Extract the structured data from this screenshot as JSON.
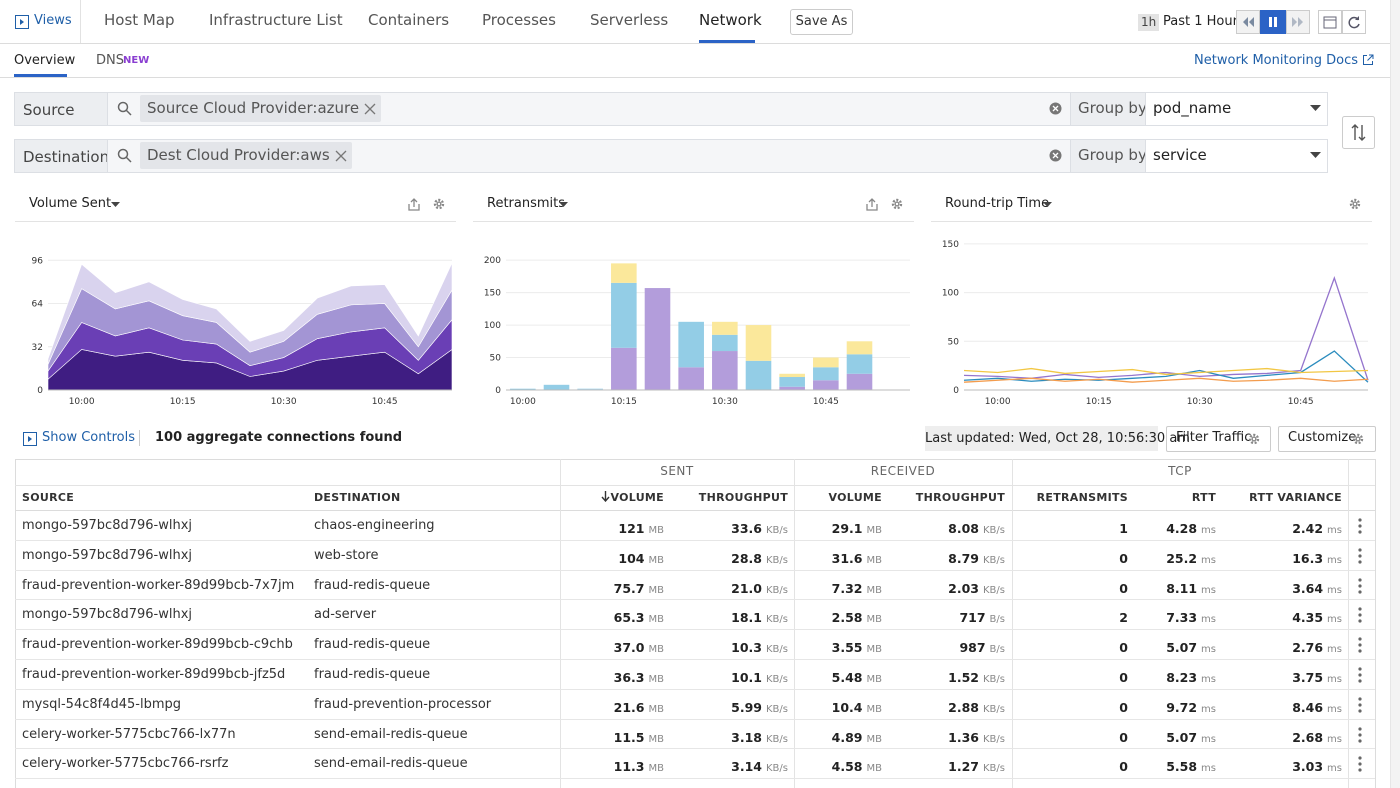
{
  "nav": {
    "views": "Views",
    "tabs": [
      "Host Map",
      "Infrastructure List",
      "Containers",
      "Processes",
      "Serverless",
      "Network"
    ],
    "save": "Save As",
    "time_short": "1h",
    "time": "Past 1 Hour"
  },
  "subnav": {
    "tabs": [
      "Overview",
      "DNS"
    ],
    "badge": "NEW",
    "docs": "Network Monitoring Docs"
  },
  "filters": [
    {
      "label": "Source",
      "tag": "Source Cloud Provider:azure",
      "group_label": "Group by",
      "group": "pod_name"
    },
    {
      "label": "Destination",
      "tag": "Dest Cloud Provider:aws",
      "group_label": "Group by",
      "group": "service"
    }
  ],
  "chart_data": [
    {
      "type": "area",
      "title": "Volume Sent",
      "categories": [
        null,
        "10:00",
        null,
        null,
        "10:15",
        null,
        null,
        "10:30",
        null,
        null,
        "10:45",
        null,
        null
      ],
      "series": [
        {
          "color": "#3f1d82",
          "values": [
            8,
            30,
            25,
            28,
            22,
            20,
            10,
            14,
            22,
            25,
            28,
            12,
            30
          ]
        },
        {
          "color": "#6a3fb5",
          "values": [
            6,
            20,
            15,
            18,
            15,
            14,
            8,
            10,
            16,
            18,
            18,
            10,
            22
          ]
        },
        {
          "color": "#a395d4",
          "values": [
            5,
            25,
            20,
            20,
            18,
            16,
            10,
            12,
            18,
            20,
            18,
            10,
            22
          ]
        },
        {
          "color": "#d9d3ee",
          "values": [
            4,
            18,
            12,
            14,
            12,
            10,
            8,
            8,
            12,
            14,
            14,
            8,
            20
          ]
        }
      ],
      "ylim": [
        0,
        111
      ],
      "yticks": [
        0,
        32,
        64,
        96
      ],
      "grid": true
    },
    {
      "type": "bar",
      "title": "Retransmits",
      "categories": [
        "10:00",
        null,
        null,
        "10:15",
        null,
        null,
        "10:30",
        null,
        null,
        "10:45",
        null,
        null
      ],
      "series": [
        {
          "color": "#b39ddb",
          "values": [
            0,
            0,
            1,
            65,
            157,
            35,
            60,
            0,
            5,
            15,
            25,
            0
          ]
        },
        {
          "color": "#93cde6",
          "values": [
            2,
            8,
            1,
            100,
            0,
            70,
            25,
            45,
            15,
            20,
            30,
            0
          ]
        },
        {
          "color": "#fbe89b",
          "values": [
            0,
            0,
            0,
            30,
            0,
            0,
            20,
            55,
            5,
            15,
            20,
            0
          ]
        }
      ],
      "ylim": [
        0,
        231
      ],
      "yticks": [
        0,
        50,
        100,
        150,
        200
      ],
      "grid": true
    },
    {
      "type": "line",
      "title": "Round-trip Time",
      "categories": [
        null,
        "10:00",
        null,
        null,
        "10:15",
        null,
        null,
        "10:30",
        null,
        null,
        "10:45",
        null,
        null
      ],
      "series": [
        {
          "color": "#9575cd",
          "values": [
            15,
            14,
            12,
            16,
            13,
            15,
            18,
            14,
            16,
            17,
            20,
            115,
            10
          ]
        },
        {
          "color": "#2b8cbe",
          "values": [
            10,
            12,
            9,
            11,
            10,
            12,
            14,
            20,
            12,
            15,
            18,
            40,
            8
          ]
        },
        {
          "color": "#f2c744",
          "values": [
            20,
            18,
            22,
            17,
            19,
            21,
            16,
            18,
            20,
            22,
            18,
            19,
            20
          ]
        },
        {
          "color": "#f39c4d",
          "values": [
            8,
            10,
            12,
            9,
            11,
            8,
            10,
            12,
            9,
            10,
            12,
            9,
            11
          ]
        }
      ],
      "ylim": [
        0,
        154
      ],
      "yticks": [
        0,
        50,
        100,
        150
      ],
      "grid": true
    }
  ],
  "controls": {
    "show": "Show Controls",
    "count": "100 aggregate connections found",
    "updated": "Last updated: Wed, Oct 28, 10:56:30 am",
    "filter": "Filter Traffic",
    "customize": "Customize"
  },
  "table": {
    "groups": [
      "SENT",
      "RECEIVED",
      "TCP"
    ],
    "columns": [
      "SOURCE",
      "DESTINATION",
      "VOLUME",
      "THROUGHPUT",
      "VOLUME",
      "THROUGHPUT",
      "RETRANSMITS",
      "RTT",
      "RTT VARIANCE"
    ],
    "rows": [
      {
        "source": "mongo-597bc8d796-wlhxj",
        "destination": "chaos-engineering",
        "cells": [
          [
            "121",
            "MB"
          ],
          [
            "33.6",
            "KB/s"
          ],
          [
            "29.1",
            "MB"
          ],
          [
            "8.08",
            "KB/s"
          ],
          [
            "1"
          ],
          [
            "4.28",
            "ms"
          ],
          [
            "2.42",
            "ms"
          ]
        ]
      },
      {
        "source": "mongo-597bc8d796-wlhxj",
        "destination": "web-store",
        "cells": [
          [
            "104",
            "MB"
          ],
          [
            "28.8",
            "KB/s"
          ],
          [
            "31.6",
            "MB"
          ],
          [
            "8.79",
            "KB/s"
          ],
          [
            "0"
          ],
          [
            "25.2",
            "ms"
          ],
          [
            "16.3",
            "ms"
          ]
        ]
      },
      {
        "source": "fraud-prevention-worker-89d99bcb-7x7jm",
        "destination": "fraud-redis-queue",
        "cells": [
          [
            "75.7",
            "MB"
          ],
          [
            "21.0",
            "KB/s"
          ],
          [
            "7.32",
            "MB"
          ],
          [
            "2.03",
            "KB/s"
          ],
          [
            "0"
          ],
          [
            "8.11",
            "ms"
          ],
          [
            "3.64",
            "ms"
          ]
        ]
      },
      {
        "source": "mongo-597bc8d796-wlhxj",
        "destination": "ad-server",
        "cells": [
          [
            "65.3",
            "MB"
          ],
          [
            "18.1",
            "KB/s"
          ],
          [
            "2.58",
            "MB"
          ],
          [
            "717",
            "B/s"
          ],
          [
            "2"
          ],
          [
            "7.33",
            "ms"
          ],
          [
            "4.35",
            "ms"
          ]
        ]
      },
      {
        "source": "fraud-prevention-worker-89d99bcb-c9chb",
        "destination": "fraud-redis-queue",
        "cells": [
          [
            "37.0",
            "MB"
          ],
          [
            "10.3",
            "KB/s"
          ],
          [
            "3.55",
            "MB"
          ],
          [
            "987",
            "B/s"
          ],
          [
            "0"
          ],
          [
            "5.07",
            "ms"
          ],
          [
            "2.76",
            "ms"
          ]
        ]
      },
      {
        "source": "fraud-prevention-worker-89d99bcb-jfz5d",
        "destination": "fraud-redis-queue",
        "cells": [
          [
            "36.3",
            "MB"
          ],
          [
            "10.1",
            "KB/s"
          ],
          [
            "5.48",
            "MB"
          ],
          [
            "1.52",
            "KB/s"
          ],
          [
            "0"
          ],
          [
            "8.23",
            "ms"
          ],
          [
            "3.75",
            "ms"
          ]
        ]
      },
      {
        "source": "mysql-54c8f4d45-lbmpg",
        "destination": "fraud-prevention-processor",
        "cells": [
          [
            "21.6",
            "MB"
          ],
          [
            "5.99",
            "KB/s"
          ],
          [
            "10.4",
            "MB"
          ],
          [
            "2.88",
            "KB/s"
          ],
          [
            "0"
          ],
          [
            "9.72",
            "ms"
          ],
          [
            "8.46",
            "ms"
          ]
        ]
      },
      {
        "source": "celery-worker-5775cbc766-lx77n",
        "destination": "send-email-redis-queue",
        "cells": [
          [
            "11.5",
            "MB"
          ],
          [
            "3.18",
            "KB/s"
          ],
          [
            "4.89",
            "MB"
          ],
          [
            "1.36",
            "KB/s"
          ],
          [
            "0"
          ],
          [
            "5.07",
            "ms"
          ],
          [
            "2.68",
            "ms"
          ]
        ]
      },
      {
        "source": "celery-worker-5775cbc766-rsrfz",
        "destination": "send-email-redis-queue",
        "cells": [
          [
            "11.3",
            "MB"
          ],
          [
            "3.14",
            "KB/s"
          ],
          [
            "4.58",
            "MB"
          ],
          [
            "1.27",
            "KB/s"
          ],
          [
            "0"
          ],
          [
            "5.58",
            "ms"
          ],
          [
            "3.03",
            "ms"
          ]
        ]
      }
    ]
  }
}
